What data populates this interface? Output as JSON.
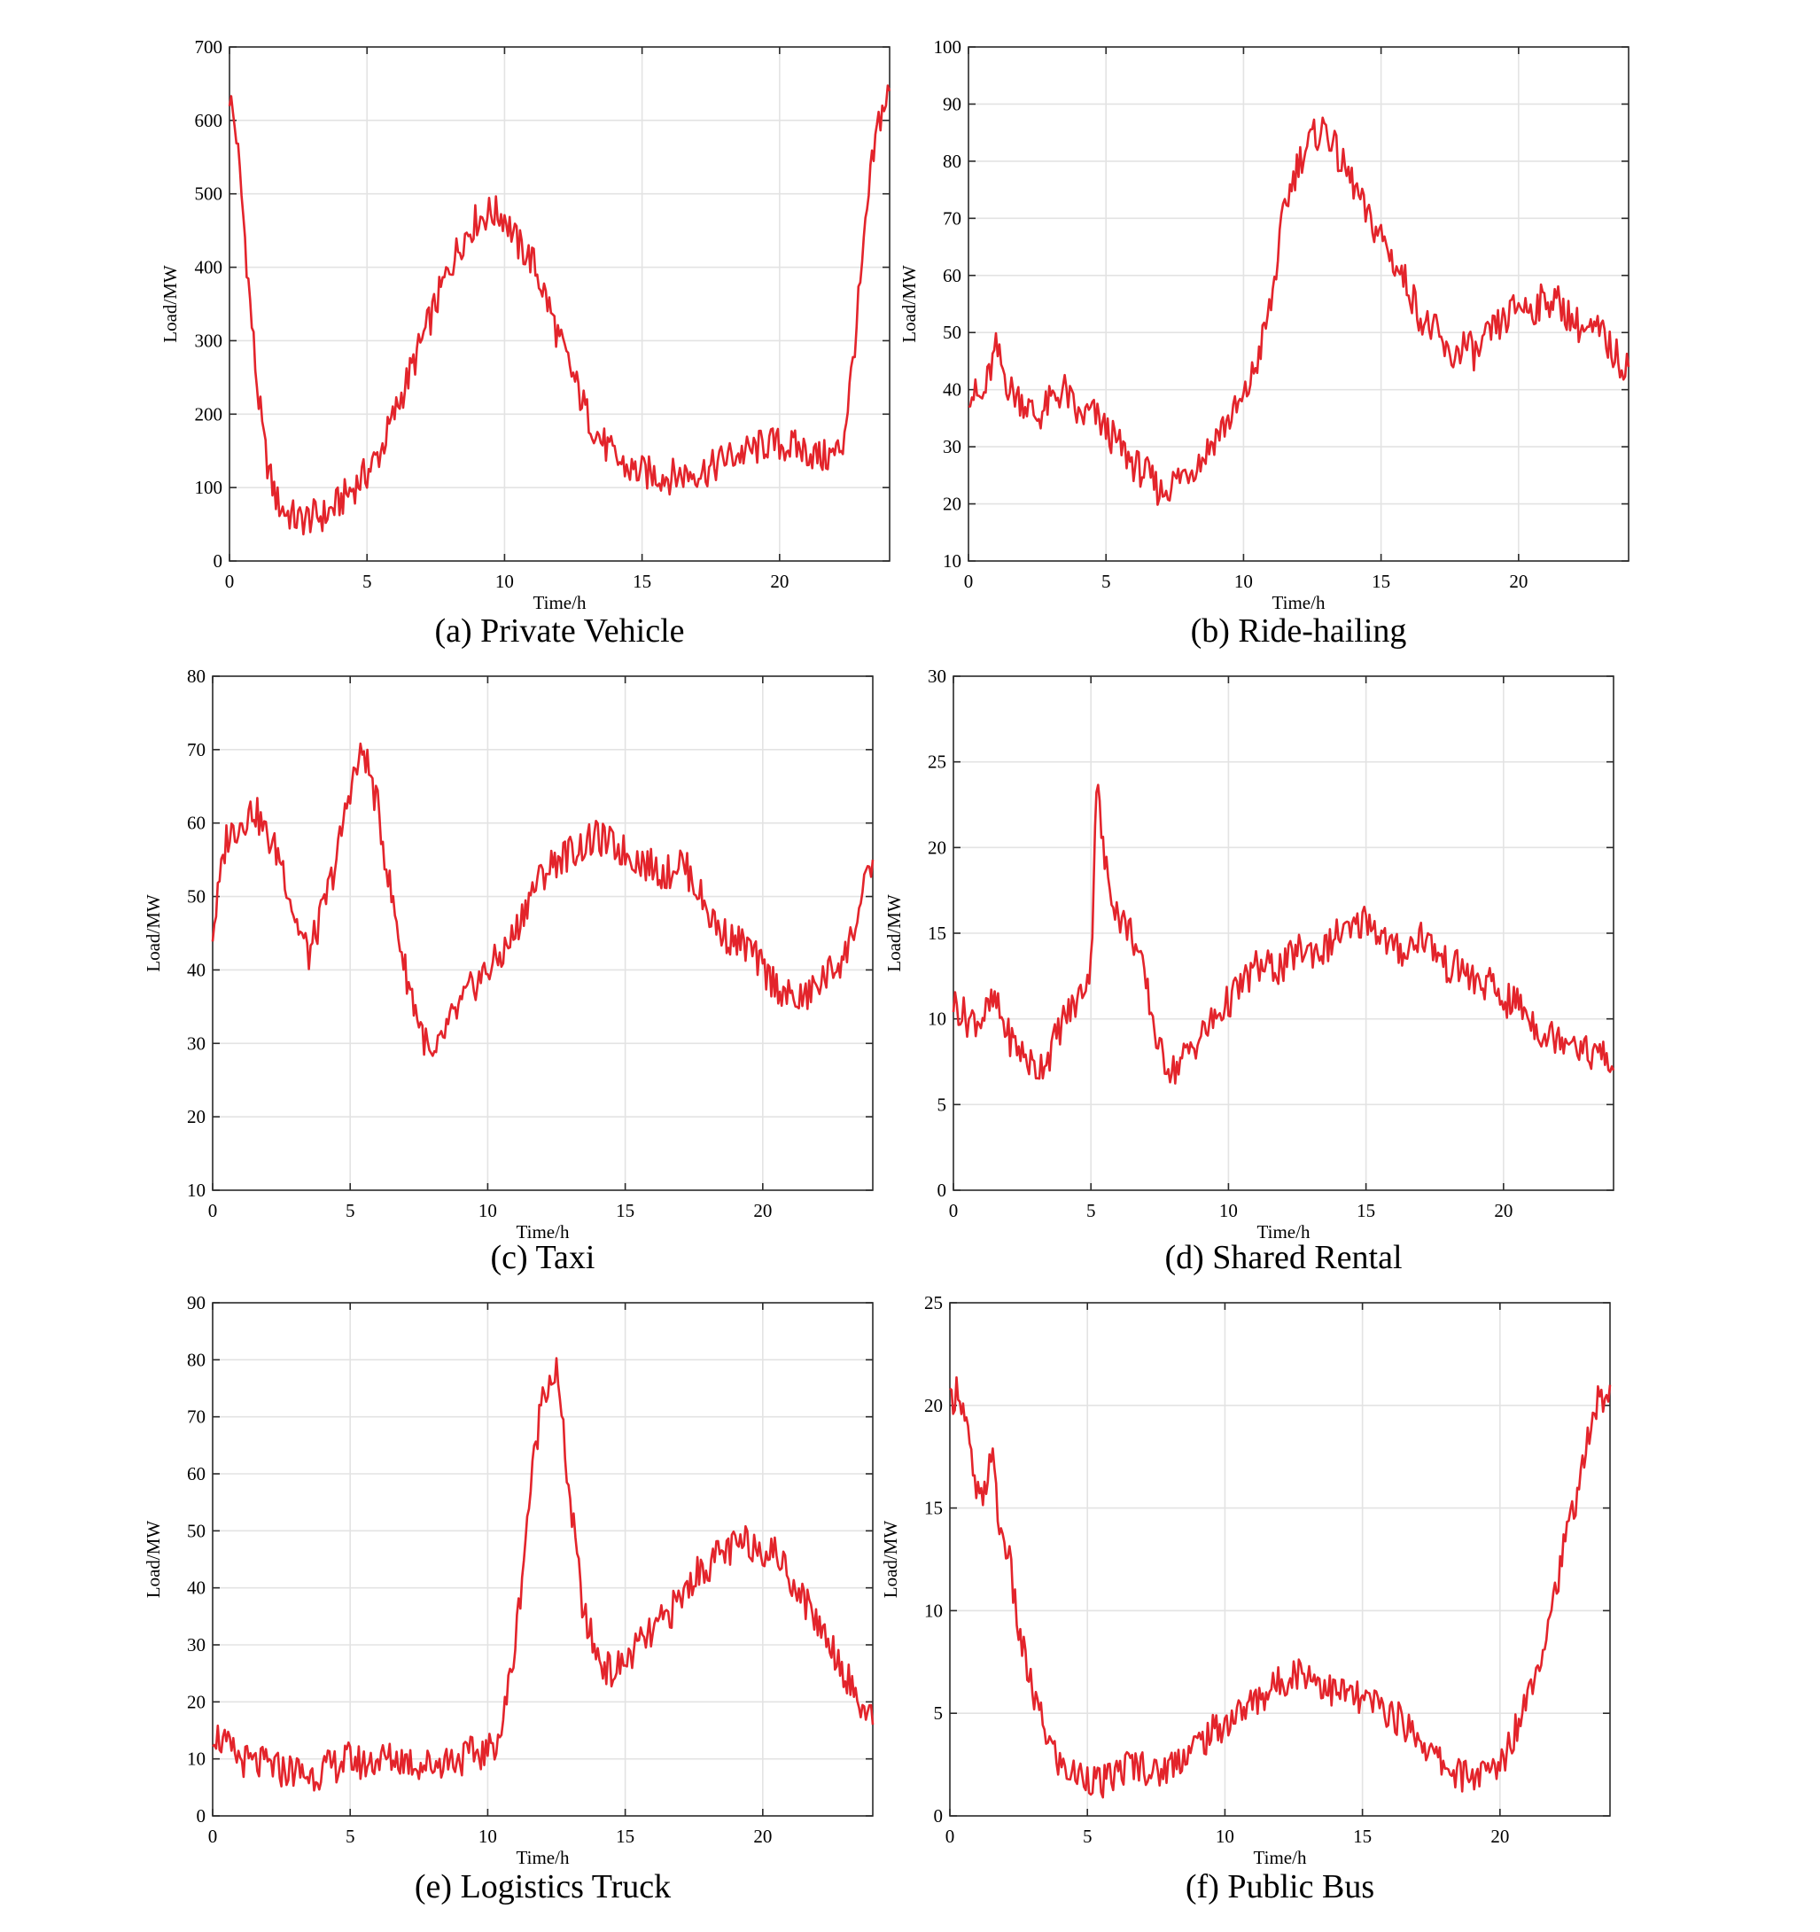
{
  "chart_data": [
    {
      "type": "line",
      "caption": "(a) Private Vehicle",
      "xlabel": "Time/h",
      "ylabel": "Load/MW",
      "xlim": [
        0,
        24
      ],
      "ylim": [
        0,
        700
      ],
      "xticks": [
        0,
        5,
        10,
        15,
        20
      ],
      "yticks": [
        0,
        100,
        200,
        300,
        400,
        500,
        600,
        700
      ],
      "grid": true,
      "color": "#e3242b",
      "series": [
        {
          "x": [
            0,
            0.25,
            0.5,
            0.75,
            1,
            1.25,
            1.5,
            1.75,
            2,
            2.5,
            3,
            3.5,
            4,
            4.5,
            5,
            5.5,
            6,
            6.5,
            7,
            7.5,
            8,
            8.5,
            9,
            9.5,
            10,
            10.5,
            11,
            11.5,
            12,
            12.5,
            13,
            13.5,
            14,
            14.5,
            15,
            15.5,
            16,
            16.5,
            17,
            17.5,
            18,
            18.5,
            19,
            19.5,
            20,
            20.5,
            21,
            21.5,
            22,
            22.3,
            22.6,
            23,
            23.3,
            23.6,
            24
          ],
          "y": [
            635,
            580,
            470,
            350,
            240,
            160,
            110,
            80,
            68,
            55,
            60,
            62,
            80,
            100,
            120,
            150,
            200,
            250,
            300,
            350,
            400,
            440,
            465,
            475,
            470,
            430,
            410,
            360,
            300,
            250,
            200,
            165,
            140,
            125,
            120,
            118,
            115,
            118,
            122,
            125,
            140,
            145,
            150,
            160,
            158,
            155,
            150,
            140,
            145,
            160,
            250,
            400,
            520,
            600,
            640
          ]
        }
      ]
    },
    {
      "type": "line",
      "caption": "(b) Ride-hailing",
      "xlabel": "Time/h",
      "ylabel": "Load/MW",
      "xlim": [
        0,
        24
      ],
      "ylim": [
        10,
        100
      ],
      "xticks": [
        0,
        5,
        10,
        15,
        20
      ],
      "yticks": [
        10,
        20,
        30,
        40,
        50,
        60,
        70,
        80,
        90,
        100
      ],
      "grid": true,
      "color": "#e3242b",
      "series": [
        {
          "x": [
            0,
            0.5,
            1,
            1.5,
            2,
            2.5,
            3,
            3.5,
            4,
            4.5,
            5,
            5.5,
            6,
            6.5,
            7,
            7.5,
            8,
            8.5,
            9,
            9.5,
            10,
            10.5,
            11,
            11.5,
            12,
            12.5,
            13,
            13.5,
            14,
            14.5,
            15,
            15.5,
            16,
            16.5,
            17,
            17.5,
            18,
            18.5,
            19,
            19.5,
            20,
            20.5,
            21,
            21.5,
            22,
            22.5,
            23,
            23.5,
            24
          ],
          "y": [
            40,
            38,
            47,
            40,
            38,
            35,
            38,
            40,
            35,
            36,
            33,
            30,
            27,
            25,
            22,
            24,
            26,
            28,
            32,
            35,
            38,
            45,
            55,
            72,
            80,
            84,
            86,
            80,
            76,
            70,
            67,
            62,
            58,
            52,
            50,
            45,
            48,
            46,
            50,
            52,
            55,
            54,
            56,
            55,
            52,
            50,
            50,
            46,
            44
          ]
        }
      ]
    },
    {
      "type": "line",
      "caption": "(c) Taxi",
      "xlabel": "Time/h",
      "ylabel": "Load/MW",
      "xlim": [
        0,
        24
      ],
      "ylim": [
        10,
        80
      ],
      "xticks": [
        0,
        5,
        10,
        15,
        20
      ],
      "yticks": [
        10,
        20,
        30,
        40,
        50,
        60,
        70,
        80
      ],
      "grid": true,
      "color": "#e3242b",
      "series": [
        {
          "x": [
            0,
            0.5,
            1,
            1.5,
            2,
            2.5,
            3,
            3.5,
            4,
            4.5,
            5,
            5.5,
            6,
            6.5,
            7,
            7.5,
            8,
            8.5,
            9,
            9.5,
            10,
            10.5,
            11,
            11.5,
            12,
            12.5,
            13,
            13.5,
            14,
            14.5,
            15,
            15.5,
            16,
            16.5,
            17,
            17.5,
            18,
            18.5,
            19,
            19.5,
            20,
            20.5,
            21,
            21.5,
            22,
            22.5,
            23,
            23.5,
            24
          ],
          "y": [
            45,
            58,
            60,
            62,
            58,
            55,
            47,
            42,
            48,
            55,
            65,
            70,
            62,
            50,
            40,
            33,
            27,
            32,
            35,
            38,
            40,
            42,
            45,
            50,
            53,
            55,
            56,
            57,
            58,
            57,
            56,
            55,
            54,
            53,
            55,
            52,
            48,
            45,
            44,
            43,
            40,
            38,
            36,
            36,
            38,
            40,
            42,
            48,
            55
          ]
        }
      ]
    },
    {
      "type": "line",
      "caption": "(d) Shared Rental",
      "xlabel": "Time/h",
      "ylabel": "Load/MW",
      "xlim": [
        0,
        24
      ],
      "ylim": [
        0,
        30
      ],
      "xticks": [
        0,
        5,
        10,
        15,
        20
      ],
      "yticks": [
        0,
        5,
        10,
        15,
        20,
        25,
        30
      ],
      "grid": true,
      "color": "#e3242b",
      "series": [
        {
          "x": [
            0,
            0.5,
            1,
            1.5,
            2,
            2.5,
            3,
            3.5,
            4,
            4.5,
            5,
            5.2,
            5.5,
            6,
            6.5,
            7,
            7.5,
            8,
            8.5,
            9,
            9.5,
            10,
            10.5,
            11,
            11.5,
            12,
            12.5,
            13,
            13.5,
            14,
            14.5,
            15,
            15.5,
            16,
            16.5,
            17,
            17.5,
            18,
            18.5,
            19,
            19.5,
            20,
            20.5,
            21,
            21.5,
            22,
            22.5,
            23,
            23.5,
            24
          ],
          "y": [
            11,
            10,
            10,
            11,
            9,
            8,
            7,
            8,
            10,
            11,
            13,
            24,
            19,
            16,
            15,
            12,
            8,
            7,
            8,
            9,
            10,
            11,
            12,
            13,
            13,
            13,
            14,
            14,
            14,
            15,
            15,
            16,
            15,
            14,
            14,
            15,
            14,
            13,
            13,
            12,
            12,
            11,
            11,
            10,
            9,
            9,
            9,
            8,
            8,
            7
          ]
        }
      ]
    },
    {
      "type": "line",
      "caption": "(e) Logistics Truck",
      "xlabel": "Time/h",
      "ylabel": "Load/MW",
      "xlim": [
        0,
        24
      ],
      "ylim": [
        0,
        90
      ],
      "xticks": [
        0,
        5,
        10,
        15,
        20
      ],
      "yticks": [
        0,
        10,
        20,
        30,
        40,
        50,
        60,
        70,
        80,
        90
      ],
      "grid": true,
      "color": "#e3242b",
      "series": [
        {
          "x": [
            0,
            0.5,
            1,
            1.5,
            2,
            2.5,
            3,
            3.5,
            4,
            4.5,
            5,
            5.5,
            6,
            6.5,
            7,
            7.5,
            8,
            8.5,
            9,
            9.5,
            10,
            10.5,
            11,
            11.5,
            12,
            12.5,
            13,
            13.5,
            14,
            14.5,
            15,
            15.5,
            16,
            16.5,
            17,
            17.5,
            18,
            18.5,
            19,
            19.5,
            20,
            20.5,
            21,
            21.5,
            22,
            22.5,
            23,
            23.5,
            24
          ],
          "y": [
            15,
            12,
            10,
            9,
            9,
            8,
            8,
            7,
            8,
            9,
            10,
            9,
            10,
            10,
            10,
            9,
            9,
            10,
            10,
            11,
            11,
            15,
            30,
            55,
            75,
            78,
            55,
            35,
            28,
            25,
            27,
            30,
            32,
            35,
            38,
            42,
            44,
            46,
            47,
            48,
            47,
            46,
            42,
            38,
            34,
            30,
            25,
            20,
            16
          ]
        }
      ]
    },
    {
      "type": "line",
      "caption": "(f) Public Bus",
      "xlabel": "Time/h",
      "ylabel": "Load/MW",
      "xlim": [
        0,
        24
      ],
      "ylim": [
        0,
        25
      ],
      "xticks": [
        0,
        5,
        10,
        15,
        20
      ],
      "yticks": [
        0,
        5,
        10,
        15,
        20,
        25
      ],
      "grid": true,
      "color": "#e3242b",
      "series": [
        {
          "x": [
            0,
            0.3,
            0.6,
            0.9,
            1.2,
            1.5,
            1.8,
            2.1,
            2.5,
            3,
            3.5,
            4,
            4.5,
            5,
            5.5,
            6,
            6.5,
            7,
            7.5,
            8,
            8.5,
            9,
            9.5,
            10,
            10.5,
            11,
            11.5,
            12,
            12.5,
            13,
            13.5,
            14,
            14.5,
            15,
            15.5,
            16,
            16.5,
            17,
            17.5,
            18,
            18.5,
            19,
            19.5,
            20,
            20.5,
            21,
            21.5,
            22,
            22.5,
            23,
            23.5,
            24
          ],
          "y": [
            20,
            21,
            19,
            16,
            15,
            18,
            14,
            13,
            9,
            6,
            4,
            2.5,
            2,
            2,
            1.5,
            2,
            2.5,
            2.5,
            2,
            2.5,
            3,
            3.5,
            4,
            4.5,
            5,
            5.5,
            6,
            6.5,
            7,
            7,
            6.5,
            6,
            6,
            5.5,
            5.5,
            5,
            4.5,
            4,
            3,
            2.5,
            2,
            2,
            2,
            2.5,
            4,
            6,
            8,
            11,
            14,
            17,
            20,
            21
          ]
        }
      ]
    }
  ]
}
